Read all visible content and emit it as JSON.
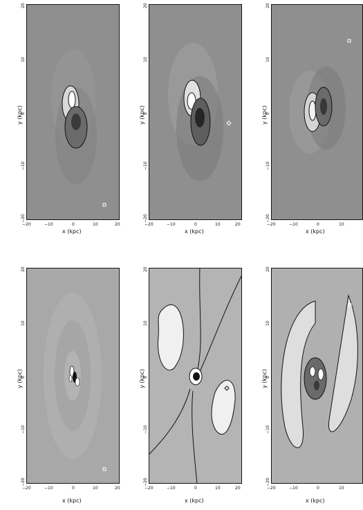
{
  "panels": [
    {
      "xlabel": "x (kpc)",
      "ylabel": "y (kpc)",
      "xticks": [
        "−20",
        "−10",
        "0",
        "10",
        "20"
      ],
      "yticks": [
        "20",
        "10",
        "0",
        "−10",
        "−20"
      ],
      "marker": "square",
      "background": "#8f8f8f"
    },
    {
      "xlabel": "x (kpc)",
      "ylabel": "y (kpc)",
      "xticks": [
        "−20",
        "−10",
        "0",
        "10",
        "20"
      ],
      "yticks": [
        "20",
        "10",
        "0",
        "−10",
        "−20"
      ],
      "marker": "diamond",
      "background": "#8f8f8f"
    },
    {
      "xlabel": "x (kpc)",
      "ylabel": "y (kpc)",
      "xticks": [
        "−20",
        "−10",
        "0",
        "10"
      ],
      "yticks": [
        "20",
        "10",
        "0",
        "−10",
        "−20"
      ],
      "marker": "square",
      "background": "#8f8f8f"
    },
    {
      "xlabel": "x (kpc)",
      "ylabel": "y (kpc)",
      "xticks": [
        "−20",
        "−10",
        "0",
        "10",
        "20"
      ],
      "yticks": [
        "20",
        "10",
        "0",
        "−10",
        "−20"
      ],
      "marker": "square",
      "background": "#a8a8a8"
    },
    {
      "xlabel": "x (kpc)",
      "ylabel": "y (kpc)",
      "xticks": [
        "−20",
        "−10",
        "0",
        "10",
        "20"
      ],
      "yticks": [
        "20",
        "10",
        "0",
        "−10",
        "−20"
      ],
      "marker": "diamond",
      "background": "#b4b4b4"
    },
    {
      "xlabel": "x (kpc)",
      "ylabel": "y (kpc)",
      "xticks": [
        "−20",
        "−10",
        "0",
        "10"
      ],
      "yticks": [
        "20",
        "10",
        "0",
        "−10",
        "−20"
      ],
      "marker": "square",
      "background": "#b0b0b0"
    }
  ]
}
